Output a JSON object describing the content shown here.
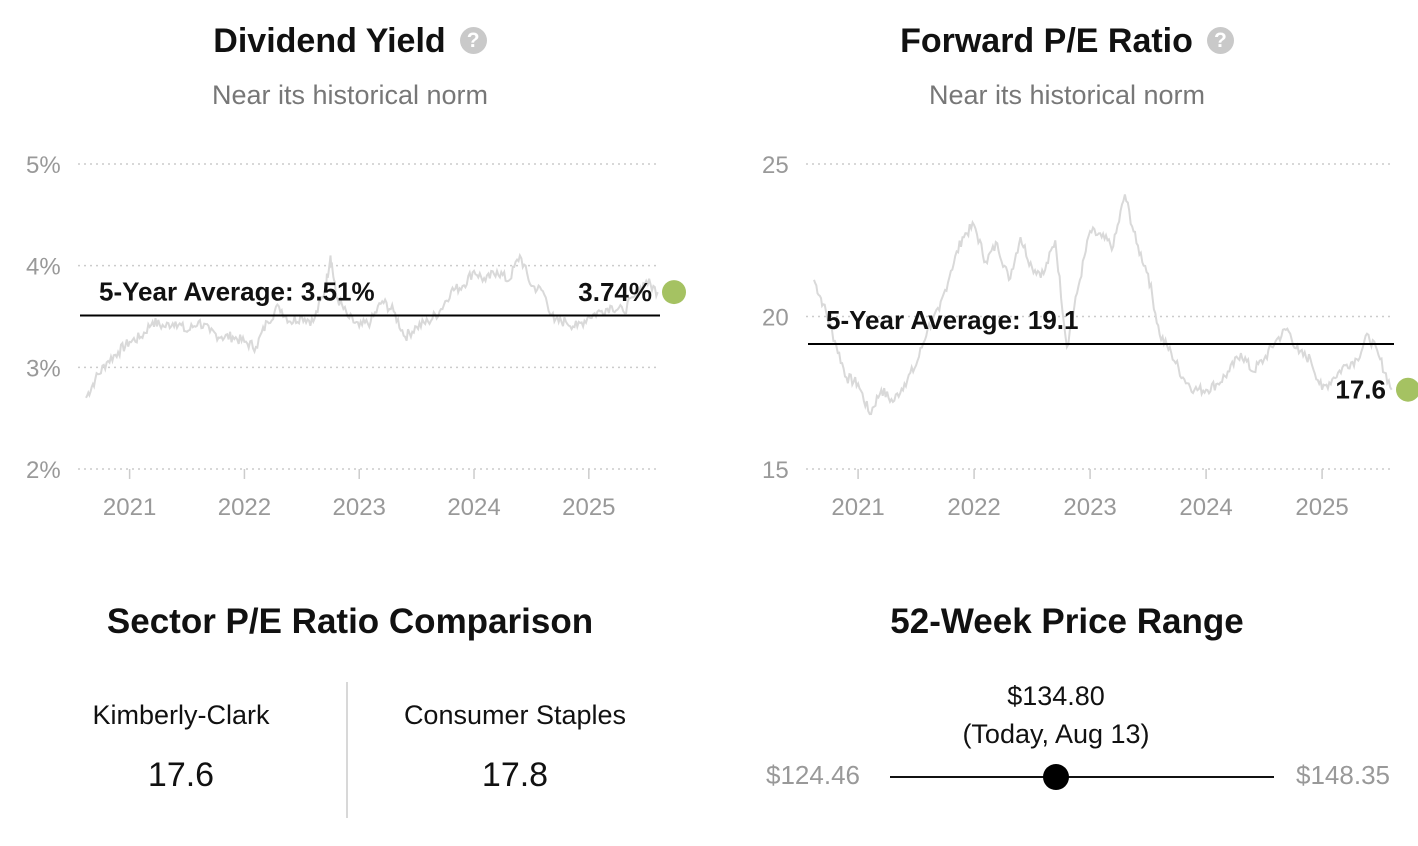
{
  "dividend": {
    "title": "Dividend Yield",
    "subtitle": "Near its historical norm",
    "help_icon": "question-circle-icon",
    "avg_label": "5-Year Average: 3.51%",
    "current_label": "3.74%"
  },
  "pe": {
    "title": "Forward P/E Ratio",
    "subtitle": "Near its historical norm",
    "help_icon": "question-circle-icon",
    "avg_label": "5-Year Average: 19.1",
    "current_label": "17.6"
  },
  "sector": {
    "title": "Sector P/E Ratio Comparison",
    "company_label": "Kimberly-Clark",
    "company_value": "17.6",
    "sector_label": "Consumer Staples",
    "sector_value": "17.8"
  },
  "range": {
    "title": "52-Week Price Range",
    "low": "$124.46",
    "high": "$148.35",
    "today_price": "$134.80",
    "today_label": "(Today, Aug 13)",
    "today_value": 134.8,
    "low_value": 124.46,
    "high_value": 148.35
  },
  "colors": {
    "line": "#d9d9d9",
    "avg_line": "#000000",
    "current_dot": "#a5c262",
    "grid": "#cccccc",
    "tick_text": "#999999"
  },
  "chart_data": [
    {
      "type": "line",
      "name": "dividend-yield",
      "y_ticks": [
        2,
        3,
        4,
        5
      ],
      "y_tick_labels": [
        "2%",
        "3%",
        "4%",
        "5%"
      ],
      "ylim": [
        2,
        5
      ],
      "x_ticks": [
        2021,
        2022,
        2023,
        2024,
        2025
      ],
      "x_tick_labels": [
        "2021",
        "2022",
        "2023",
        "2024",
        "2025"
      ],
      "xlim": [
        2020.62,
        2025.62
      ],
      "grid": true,
      "average": 3.51,
      "current": 3.74,
      "x": [
        2020.62,
        2020.7,
        2020.8,
        2020.9,
        2021.0,
        2021.1,
        2021.2,
        2021.3,
        2021.4,
        2021.5,
        2021.6,
        2021.7,
        2021.8,
        2021.9,
        2022.0,
        2022.1,
        2022.2,
        2022.3,
        2022.4,
        2022.5,
        2022.6,
        2022.7,
        2022.75,
        2022.8,
        2022.9,
        2023.0,
        2023.1,
        2023.2,
        2023.3,
        2023.4,
        2023.5,
        2023.6,
        2023.7,
        2023.8,
        2023.9,
        2024.0,
        2024.1,
        2024.2,
        2024.3,
        2024.4,
        2024.5,
        2024.6,
        2024.7,
        2024.8,
        2024.9,
        2025.0,
        2025.1,
        2025.2,
        2025.3,
        2025.4,
        2025.5,
        2025.6
      ],
      "y": [
        2.7,
        2.88,
        3.05,
        3.15,
        3.25,
        3.3,
        3.45,
        3.4,
        3.45,
        3.35,
        3.45,
        3.35,
        3.3,
        3.3,
        3.25,
        3.2,
        3.45,
        3.6,
        3.45,
        3.5,
        3.45,
        3.75,
        4.1,
        3.7,
        3.5,
        3.4,
        3.45,
        3.65,
        3.55,
        3.3,
        3.4,
        3.45,
        3.55,
        3.75,
        3.8,
        3.95,
        3.85,
        3.95,
        3.85,
        4.1,
        3.8,
        3.75,
        3.45,
        3.45,
        3.4,
        3.5,
        3.55,
        3.6,
        3.55,
        3.7,
        3.85,
        3.74
      ]
    },
    {
      "type": "line",
      "name": "forward-pe",
      "y_ticks": [
        15,
        20,
        25
      ],
      "y_tick_labels": [
        "15",
        "20",
        "25"
      ],
      "ylim": [
        15,
        25
      ],
      "x_ticks": [
        2021,
        2022,
        2023,
        2024,
        2025
      ],
      "x_tick_labels": [
        "2021",
        "2022",
        "2023",
        "2024",
        "2025"
      ],
      "xlim": [
        2020.62,
        2025.62
      ],
      "grid": true,
      "average": 19.1,
      "current": 17.6,
      "x": [
        2020.62,
        2020.7,
        2020.8,
        2020.9,
        2021.0,
        2021.1,
        2021.2,
        2021.3,
        2021.4,
        2021.5,
        2021.6,
        2021.7,
        2021.8,
        2021.9,
        2022.0,
        2022.1,
        2022.2,
        2022.3,
        2022.4,
        2022.5,
        2022.6,
        2022.7,
        2022.8,
        2022.9,
        2023.0,
        2023.1,
        2023.2,
        2023.3,
        2023.4,
        2023.5,
        2023.6,
        2023.7,
        2023.8,
        2023.9,
        2024.0,
        2024.1,
        2024.2,
        2024.3,
        2024.4,
        2024.5,
        2024.6,
        2024.7,
        2024.8,
        2024.9,
        2025.0,
        2025.1,
        2025.2,
        2025.3,
        2025.4,
        2025.5,
        2025.6
      ],
      "y": [
        21.2,
        20.4,
        19.2,
        18.0,
        17.8,
        16.8,
        17.6,
        17.2,
        17.8,
        18.4,
        19.6,
        20.2,
        21.5,
        22.6,
        23.0,
        21.8,
        22.4,
        21.2,
        22.6,
        21.6,
        21.4,
        22.5,
        19.0,
        21.0,
        22.8,
        22.6,
        22.3,
        24.0,
        22.4,
        21.4,
        19.4,
        18.8,
        18.0,
        17.6,
        17.6,
        17.8,
        18.2,
        18.8,
        18.2,
        18.6,
        19.2,
        19.6,
        18.8,
        18.6,
        17.6,
        18.0,
        18.4,
        18.6,
        19.4,
        18.6,
        17.6
      ]
    }
  ]
}
